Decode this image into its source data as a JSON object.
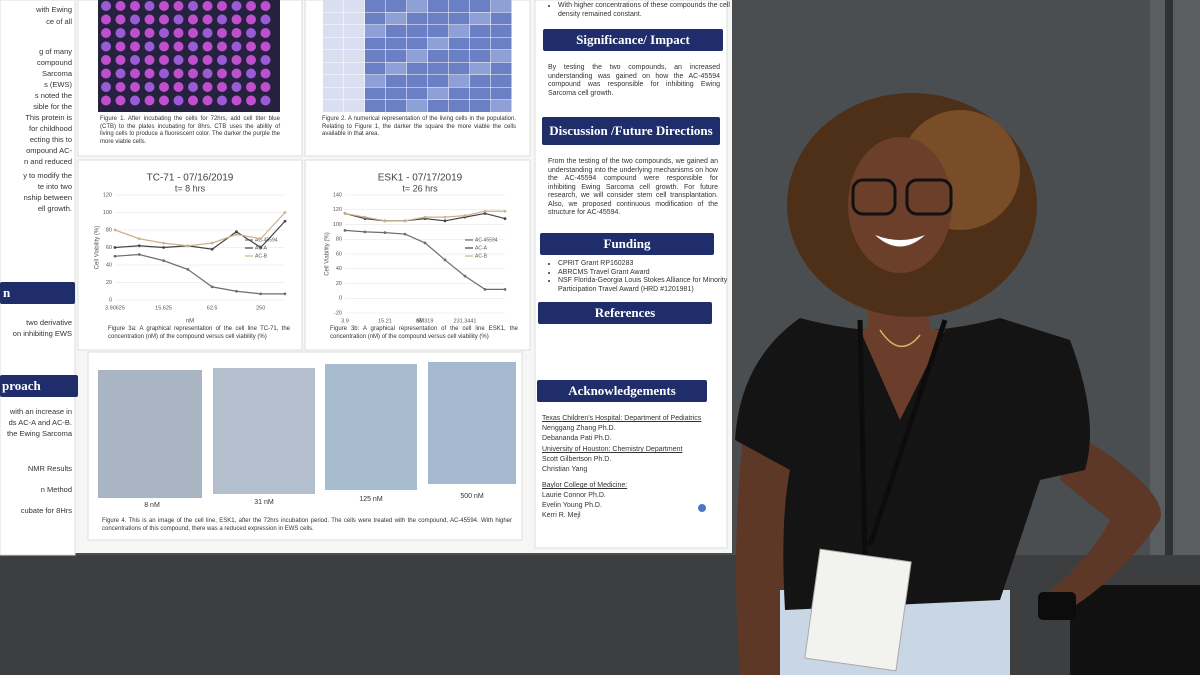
{
  "poster": {
    "left_column": [
      "with Ewing",
      "ce of all",
      "g of many",
      "compound",
      "Sarcoma",
      "s (EWS)",
      "s noted the",
      "sible for the",
      "This protein is",
      "for childhood",
      "ecting this to",
      "ompound AC-",
      "n and reduced",
      "y to modify the",
      "te into two",
      "nship between",
      "ell growth."
    ],
    "left_header_1": "n",
    "left_text_2": [
      "two derivative",
      "on inhibiting EWS"
    ],
    "left_header_2": "proach",
    "left_text_3": [
      "with an increase in",
      "ds AC-A and AC-B.",
      "the Ewing Sarcoma",
      "NMR Results",
      "n Method",
      "cubate for 8Hrs"
    ],
    "figure1_caption": "Figure 1. After incubating the cells for 72hrs, add cell titer blue (CTB) to the plates incubating for 8hrs. CTB uses the ability of living cells to produce a fluorescent color. The darker the purple the more viable cells.",
    "figure2_caption": "Figure 2. A numerical representation of the living cells in the population. Relating to Figure 1, the darker the square the more viable the cells available in that area.",
    "figure3a_caption": "Figure 3a: A graphical representation of the cell line TC-71, the concentration (nM) of the compound versus cell viability (%)",
    "figure3b_caption": "Figure 3b: A graphical representation of the cell line ESK1, the concentration (nM) of the compound versus cell viability (%)",
    "figure4_labels": [
      "8 nM",
      "31 nM",
      "125 nM",
      "500 nM"
    ],
    "figure4_caption": "Figure 4. This is an image of the cell line, ESK1, after the 72hrs incubation period. The cells were treated with the compound, AC-45594. With higher concentrations of this compound, there was a reduced expression in EWS cells.",
    "results_bullet": "With higher concentrations of these compounds the cell density remained constant.",
    "significance_header": "Significance/ Impact",
    "significance_text": "By testing the two compounds, an increased understanding was gained on how the AC-45594 compound was responsible for inhibiting Ewing Sarcoma cell growth.",
    "discussion_header": "Discussion /Future Directions",
    "discussion_text": "From the testing of the two compounds, we gained an understanding into the underlying mechanisms on how the AC-45594 compound were responsible for inhibiting Ewing Sarcoma cell growth. For future research, we will consider stem cell transplantation. Also, we proposed continuous modification of the structure for AC-45594.",
    "funding_header": "Funding",
    "funding_items": [
      "CPRIT Grant RP160283",
      "ABRCMS Travel Grant Award",
      "NSF Florida-Georgia Louis Stokes Alliance for Minority Participation Travel Award (HRD #1201981)"
    ],
    "references_header": "References",
    "acknowledgements_header": "Acknowledgements",
    "acknowledgements": [
      "Texas Children's Hospital: Department of Pediatrics",
      "Nenggang Zhang Ph.D.",
      "Debananda Pati Ph.D.",
      "University of Houston: Chemistry Department",
      "Scott Gilbertson Ph.D.",
      "Christian Yang",
      "Baylor College of Medicine:",
      "Laurie Connor Ph.D.",
      "Evelin Young Ph.D.",
      "Kerri R. Mejl"
    ]
  },
  "chart_data": [
    {
      "type": "line",
      "title": "TC-71 - 07/16/2019",
      "subtitle": "t= 8 hrs",
      "y_label": "Cell Viability (%)",
      "x_label": "nM",
      "categories": [
        "3.90625",
        null,
        "15.625",
        null,
        "62.5",
        null,
        "250",
        null
      ],
      "ylim": [
        0,
        120
      ],
      "yticks": [
        0,
        20,
        40,
        60,
        80,
        100,
        120
      ],
      "series": [
        {
          "name": "AC-45594",
          "color": "#6d6d6d",
          "values": [
            50,
            52,
            45,
            35,
            15,
            10,
            7,
            7
          ]
        },
        {
          "name": "AC-A",
          "color": "#444444",
          "values": [
            60,
            62,
            60,
            62,
            58,
            78,
            60,
            90
          ]
        },
        {
          "name": "AC-B",
          "color": "#c9b48a",
          "values": [
            80,
            70,
            65,
            62,
            65,
            75,
            70,
            100
          ]
        }
      ]
    },
    {
      "type": "line",
      "title": "ESK1 - 07/17/2019",
      "subtitle": "t= 26 hrs",
      "y_label": "Cell Viability (%)",
      "x_label": "nM",
      "categories": [
        "3.9",
        null,
        "15.21",
        null,
        "59.319",
        null,
        "231.3441",
        null,
        null
      ],
      "ylim": [
        -20,
        140
      ],
      "yticks": [
        -20,
        0,
        20,
        40,
        60,
        80,
        100,
        120,
        140
      ],
      "series": [
        {
          "name": "AC-45594",
          "color": "#6d6d6d",
          "values": [
            92,
            90,
            89,
            87,
            75,
            52,
            30,
            12,
            12
          ]
        },
        {
          "name": "AC-A",
          "color": "#444444",
          "values": [
            115,
            108,
            105,
            105,
            108,
            105,
            110,
            115,
            108
          ]
        },
        {
          "name": "AC-B",
          "color": "#c9b48a",
          "values": [
            115,
            110,
            105,
            105,
            110,
            110,
            112,
            118,
            118
          ]
        }
      ]
    }
  ]
}
